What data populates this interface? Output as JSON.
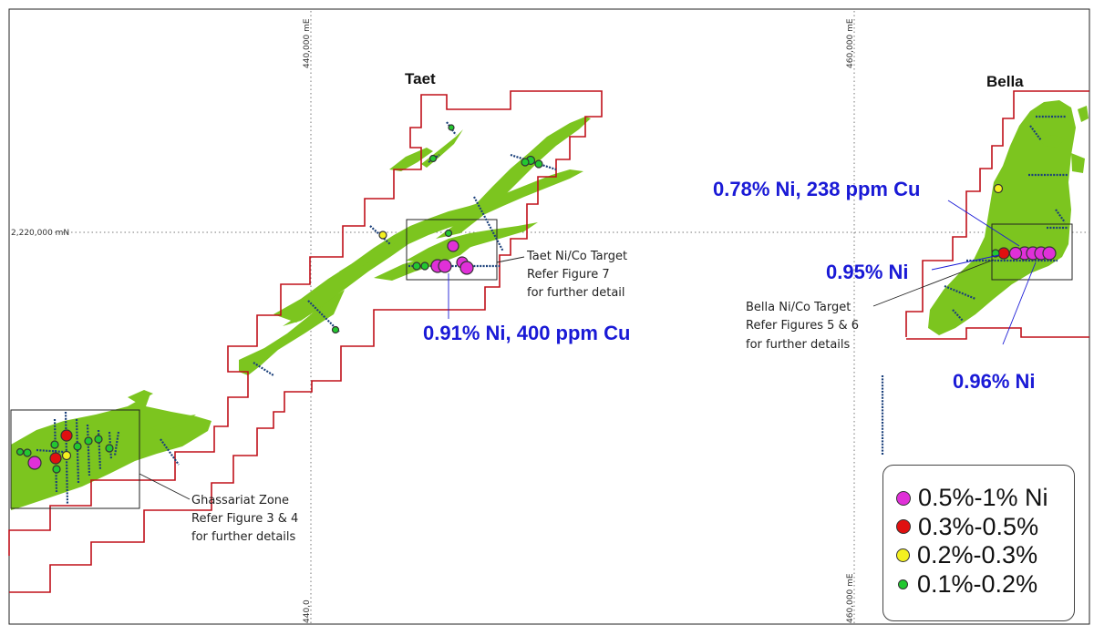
{
  "grid": {
    "easting_labels": [
      "440,000 mE",
      "460,000 mE"
    ],
    "easting_labels_bottom": [
      "440,0",
      "460,000 mE"
    ],
    "northing_label": "2,220,000 mN"
  },
  "areas": {
    "taet": "Taet",
    "bella": "Bella"
  },
  "results": {
    "taet_result": "0.91% Ni, 400 ppm Cu",
    "bella_result_1": "0.78% Ni, 238 ppm Cu",
    "bella_result_2": "0.95% Ni",
    "bella_result_3": "0.96% Ni"
  },
  "callouts": {
    "taet_target": [
      "Taet Ni/Co Target",
      "Refer Figure 7",
      "for further detail"
    ],
    "bella_target": [
      "Bella Ni/Co Target",
      "Refer Figures 5 & 6",
      "for further details"
    ],
    "ghassariat": [
      "Ghassariat Zone",
      "Refer Figure 3 & 4",
      "for further details"
    ]
  },
  "legend": [
    {
      "label": "0.5%-1% Ni",
      "color": "#e030d8",
      "size": 16
    },
    {
      "label": "0.3%-0.5%",
      "color": "#e01010",
      "size": 16
    },
    {
      "label": "0.2%-0.3%",
      "color": "#f4f020",
      "size": 15
    },
    {
      "label": "0.1%-0.2%",
      "color": "#22c830",
      "size": 11
    }
  ],
  "colors": {
    "boundary": "#c0101a",
    "ultramafic": "#7cc51f",
    "drillhole": "#1a3f7a",
    "result_text": "#1a1ad6"
  }
}
